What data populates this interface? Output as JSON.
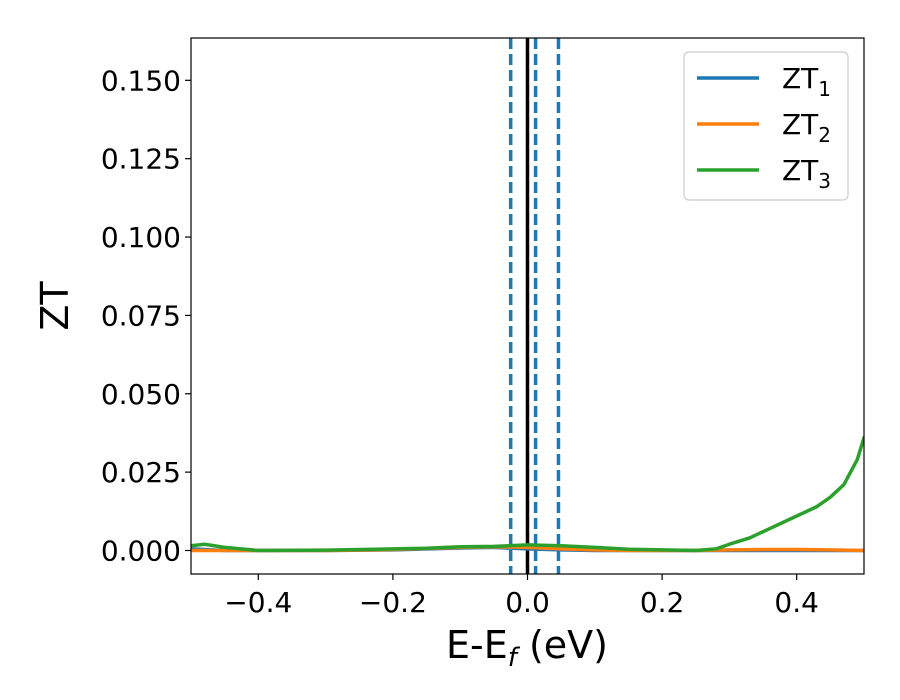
{
  "chart_data": {
    "type": "line",
    "xlabel": "E-E",
    "xlabel_sub": "f",
    "xlabel_unit": " (eV)",
    "ylabel": "ZT",
    "xlim": [
      -0.5,
      0.5
    ],
    "ylim": [
      -0.0075,
      0.1635
    ],
    "xticks": [
      -0.4,
      -0.2,
      0.0,
      0.2,
      0.4
    ],
    "xtick_labels": [
      "−0.4",
      "−0.2",
      "0.0",
      "0.2",
      "0.4"
    ],
    "yticks": [
      0.0,
      0.025,
      0.05,
      0.075,
      0.1,
      0.125,
      0.15
    ],
    "ytick_labels": [
      "0.000",
      "0.025",
      "0.050",
      "0.075",
      "0.100",
      "0.125",
      "0.150"
    ],
    "grid": false,
    "legend_position": "top-right",
    "series": [
      {
        "name": "ZT",
        "sub": "1",
        "color": "#1f77b4",
        "x": [
          -0.5,
          -0.45,
          -0.4,
          -0.3,
          -0.2,
          -0.1,
          -0.05,
          0.0,
          0.05,
          0.1,
          0.15,
          0.2,
          0.25,
          0.3,
          0.4,
          0.5
        ],
        "y": [
          0.0005,
          0.0,
          0.0,
          0.0,
          0.0002,
          0.0008,
          0.001,
          0.0005,
          0.0002,
          0.0,
          0.0,
          0.0,
          0.0,
          0.0,
          0.0,
          0.0
        ]
      },
      {
        "name": "ZT",
        "sub": "2",
        "color": "#ff7f0e",
        "x": [
          -0.5,
          -0.45,
          -0.4,
          -0.3,
          -0.2,
          -0.1,
          -0.05,
          0.0,
          0.05,
          0.1,
          0.15,
          0.2,
          0.25,
          0.3,
          0.35,
          0.4,
          0.45,
          0.5
        ],
        "y": [
          0.0,
          0.0,
          0.0,
          0.0,
          0.0003,
          0.001,
          0.0012,
          0.001,
          0.0005,
          0.0002,
          0.0,
          0.0,
          0.0,
          0.0002,
          0.0003,
          0.0003,
          0.0002,
          0.0
        ]
      },
      {
        "name": "ZT",
        "sub": "3",
        "color": "#2ca02c",
        "x": [
          -0.5,
          -0.48,
          -0.45,
          -0.4,
          -0.3,
          -0.2,
          -0.15,
          -0.1,
          -0.05,
          0.0,
          0.05,
          0.1,
          0.15,
          0.2,
          0.25,
          0.28,
          0.3,
          0.33,
          0.36,
          0.4,
          0.43,
          0.45,
          0.47,
          0.49,
          0.5
        ],
        "y": [
          0.0015,
          0.002,
          0.001,
          0.0,
          0.0001,
          0.0005,
          0.0007,
          0.0012,
          0.0013,
          0.0018,
          0.0015,
          0.001,
          0.0004,
          0.0002,
          0.0,
          0.0005,
          0.002,
          0.004,
          0.007,
          0.011,
          0.014,
          0.017,
          0.021,
          0.029,
          0.036
        ]
      }
    ],
    "vlines": [
      {
        "x": 0.0,
        "style": "solid",
        "color": "#000000"
      },
      {
        "x": -0.025,
        "style": "dashed",
        "color": "#1f77b4"
      },
      {
        "x": 0.012,
        "style": "dashed",
        "color": "#1f77b4"
      },
      {
        "x": 0.046,
        "style": "dashed",
        "color": "#1f77b4"
      }
    ]
  }
}
